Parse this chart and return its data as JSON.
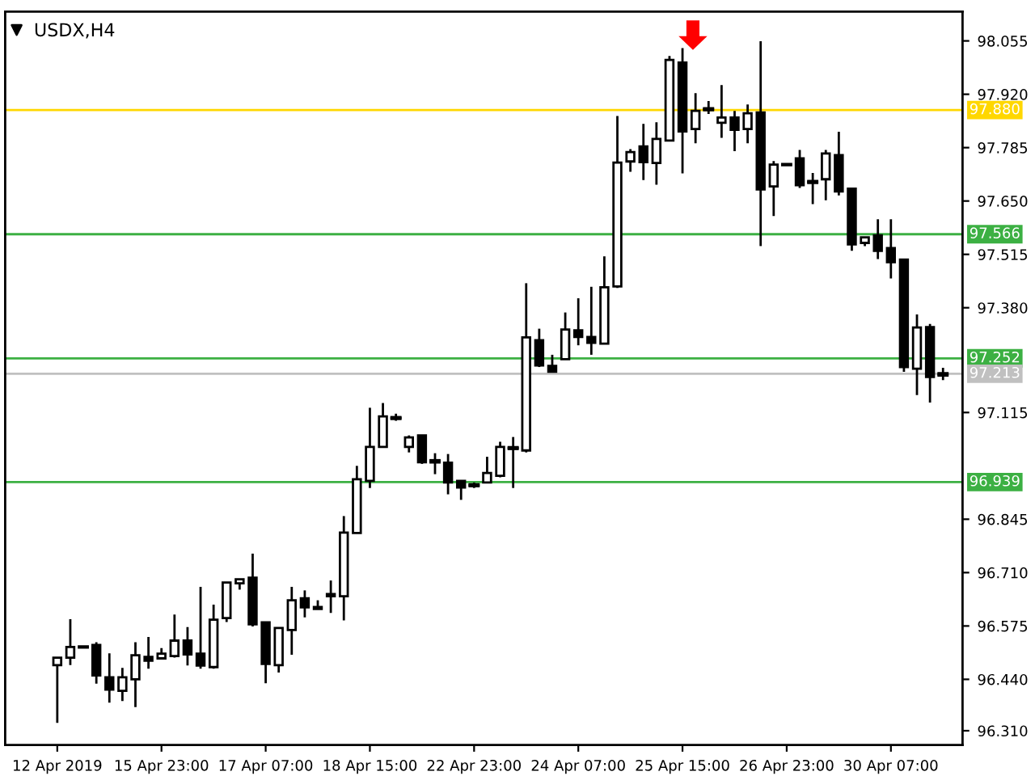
{
  "chart_data": {
    "type": "candlestick",
    "title": "USDX,H4",
    "categories": [
      "12 Apr 2019",
      null,
      null,
      null,
      null,
      null,
      null,
      null,
      "15 Apr 23:00",
      null,
      null,
      null,
      null,
      null,
      null,
      null,
      "17 Apr 07:00",
      null,
      null,
      null,
      null,
      null,
      null,
      null,
      "18 Apr 15:00",
      null,
      null,
      null,
      null,
      null,
      null,
      null,
      "22 Apr 23:00",
      null,
      null,
      null,
      null,
      null,
      null,
      null,
      "24 Apr 07:00",
      null,
      null,
      null,
      null,
      null,
      null,
      null,
      "25 Apr 15:00",
      null,
      null,
      null,
      null,
      null,
      null,
      null,
      "26 Apr 23:00",
      null,
      null,
      null,
      null,
      null,
      null,
      null,
      "30 Apr 07:00",
      null,
      null,
      null,
      null
    ],
    "ohlc": [
      [
        96.476,
        96.495,
        96.33,
        96.495
      ],
      [
        96.495,
        96.592,
        96.476,
        96.522
      ],
      [
        96.522,
        96.522,
        96.522,
        96.522
      ],
      [
        96.527,
        96.534,
        96.429,
        96.45
      ],
      [
        96.445,
        96.506,
        96.381,
        96.414
      ],
      [
        96.411,
        96.469,
        96.385,
        96.445
      ],
      [
        96.44,
        96.534,
        96.37,
        96.501
      ],
      [
        96.497,
        96.547,
        96.467,
        96.487
      ],
      [
        96.493,
        96.519,
        96.491,
        96.505
      ],
      [
        96.499,
        96.604,
        96.495,
        96.538
      ],
      [
        96.538,
        96.572,
        96.475,
        96.503
      ],
      [
        96.505,
        96.674,
        96.467,
        96.475
      ],
      [
        96.471,
        96.629,
        96.467,
        96.591
      ],
      [
        96.595,
        96.685,
        96.585,
        96.685
      ],
      [
        96.683,
        96.693,
        96.667,
        96.693
      ],
      [
        96.697,
        96.758,
        96.574,
        96.579
      ],
      [
        96.584,
        96.584,
        96.43,
        96.479
      ],
      [
        96.476,
        96.57,
        96.457,
        96.57
      ],
      [
        96.565,
        96.674,
        96.502,
        96.64
      ],
      [
        96.645,
        96.665,
        96.597,
        96.622
      ],
      [
        96.623,
        96.64,
        96.618,
        96.618
      ],
      [
        96.656,
        96.69,
        96.608,
        96.65
      ],
      [
        96.65,
        96.853,
        96.589,
        96.811
      ],
      [
        96.81,
        96.98,
        96.81,
        96.946
      ],
      [
        96.942,
        97.127,
        96.924,
        97.028
      ],
      [
        97.028,
        97.139,
        97.028,
        97.105
      ],
      [
        97.102,
        97.112,
        97.094,
        97.1
      ],
      [
        97.028,
        97.057,
        97.014,
        97.052
      ],
      [
        97.057,
        97.057,
        96.985,
        96.989
      ],
      [
        96.993,
        97.012,
        96.959,
        96.99
      ],
      [
        96.988,
        97.01,
        96.908,
        96.938
      ],
      [
        96.942,
        96.942,
        96.894,
        96.925
      ],
      [
        96.932,
        96.938,
        96.924,
        96.93
      ],
      [
        96.938,
        97.003,
        96.938,
        96.962
      ],
      [
        96.955,
        97.041,
        96.951,
        97.028
      ],
      [
        97.026,
        97.053,
        96.924,
        97.024
      ],
      [
        97.019,
        97.442,
        97.014,
        97.305
      ],
      [
        97.298,
        97.327,
        97.23,
        97.234
      ],
      [
        97.233,
        97.261,
        97.218,
        97.218
      ],
      [
        97.25,
        97.368,
        97.25,
        97.325
      ],
      [
        97.323,
        97.404,
        97.285,
        97.306
      ],
      [
        97.306,
        97.433,
        97.261,
        97.291
      ],
      [
        97.289,
        97.51,
        97.289,
        97.432
      ],
      [
        97.434,
        97.865,
        97.43,
        97.747
      ],
      [
        97.75,
        97.781,
        97.724,
        97.774
      ],
      [
        97.788,
        97.845,
        97.703,
        97.748
      ],
      [
        97.746,
        97.849,
        97.691,
        97.807
      ],
      [
        97.803,
        98.017,
        97.803,
        98.007
      ],
      [
        98.0,
        98.037,
        97.72,
        97.826
      ],
      [
        97.832,
        97.923,
        97.796,
        97.878
      ],
      [
        97.883,
        97.903,
        97.87,
        97.881
      ],
      [
        97.848,
        97.943,
        97.81,
        97.861
      ],
      [
        97.861,
        97.878,
        97.776,
        97.83
      ],
      [
        97.832,
        97.894,
        97.796,
        97.872
      ],
      [
        97.874,
        98.054,
        97.536,
        97.679
      ],
      [
        97.687,
        97.751,
        97.612,
        97.742
      ],
      [
        97.742,
        97.742,
        97.742,
        97.742
      ],
      [
        97.758,
        97.779,
        97.683,
        97.69
      ],
      [
        97.699,
        97.721,
        97.642,
        97.697
      ],
      [
        97.705,
        97.779,
        97.652,
        97.77
      ],
      [
        97.766,
        97.825,
        97.664,
        97.674
      ],
      [
        97.681,
        97.681,
        97.524,
        97.54
      ],
      [
        97.544,
        97.558,
        97.536,
        97.558
      ],
      [
        97.563,
        97.604,
        97.503,
        97.524
      ],
      [
        97.531,
        97.604,
        97.454,
        97.495
      ],
      [
        97.502,
        97.502,
        97.218,
        97.23
      ],
      [
        97.226,
        97.363,
        97.159,
        97.33
      ],
      [
        97.331,
        97.339,
        97.14,
        97.205
      ],
      [
        97.21,
        97.228,
        97.197,
        97.213
      ]
    ],
    "ylim": [
      96.274,
      98.129
    ],
    "yticks": [
      98.055,
      {
        "value": 97.92,
        "label": "97.920"
      },
      97.785,
      {
        "value": 97.65,
        "label": "97.650"
      },
      97.515,
      {
        "value": 97.38,
        "label": "97.380"
      },
      97.115,
      96.845,
      {
        "value": 96.71,
        "label": "96.710"
      },
      96.575,
      {
        "value": 96.44,
        "label": "96.440"
      },
      {
        "value": 96.31,
        "label": "96.310"
      }
    ],
    "ref_lines": [
      {
        "axis": "y",
        "value": 97.88,
        "label": "97.880",
        "color": "#ffd700"
      },
      {
        "axis": "y",
        "value": 97.566,
        "label": "97.566",
        "color": "#3cb043"
      },
      {
        "axis": "y",
        "value": 97.252,
        "label": "97.252",
        "color": "#3cb043"
      },
      {
        "axis": "y",
        "value": 97.213,
        "label": "97.213",
        "color": "#c0c0c0"
      },
      {
        "axis": "y",
        "value": 96.939,
        "label": "96.939",
        "color": "#3cb043"
      }
    ],
    "grid": false
  }
}
